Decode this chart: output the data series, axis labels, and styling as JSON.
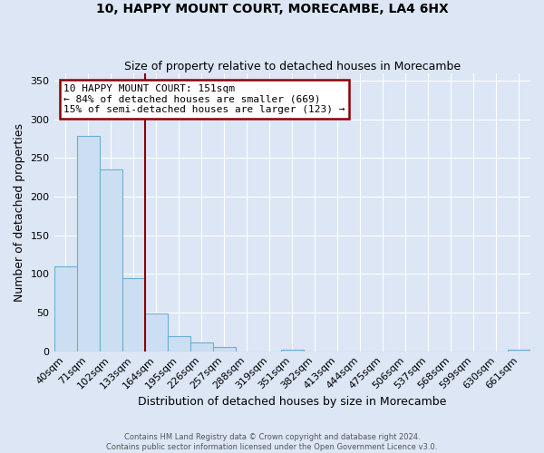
{
  "title": "10, HAPPY MOUNT COURT, MORECAMBE, LA4 6HX",
  "subtitle": "Size of property relative to detached houses in Morecambe",
  "xlabel": "Distribution of detached houses by size in Morecambe",
  "ylabel": "Number of detached properties",
  "footer_line1": "Contains HM Land Registry data © Crown copyright and database right 2024.",
  "footer_line2": "Contains public sector information licensed under the Open Government Licence v3.0.",
  "bin_labels": [
    "40sqm",
    "71sqm",
    "102sqm",
    "133sqm",
    "164sqm",
    "195sqm",
    "226sqm",
    "257sqm",
    "288sqm",
    "319sqm",
    "351sqm",
    "382sqm",
    "413sqm",
    "444sqm",
    "475sqm",
    "506sqm",
    "537sqm",
    "568sqm",
    "599sqm",
    "630sqm",
    "661sqm"
  ],
  "bar_values": [
    110,
    279,
    235,
    95,
    49,
    19,
    11,
    5,
    0,
    0,
    2,
    0,
    0,
    0,
    0,
    0,
    0,
    0,
    0,
    0,
    2
  ],
  "bar_color": "#ccdff2",
  "bar_edgecolor": "#6baed6",
  "ylim": [
    0,
    360
  ],
  "yticks": [
    0,
    50,
    100,
    150,
    200,
    250,
    300,
    350
  ],
  "vline_color": "#8b0000",
  "annotation_text": "10 HAPPY MOUNT COURT: 151sqm\n← 84% of detached houses are smaller (669)\n15% of semi-detached houses are larger (123) →",
  "annotation_box_color": "#8b0000",
  "bg_color": "#dce6f5",
  "grid_color": "#ffffff"
}
